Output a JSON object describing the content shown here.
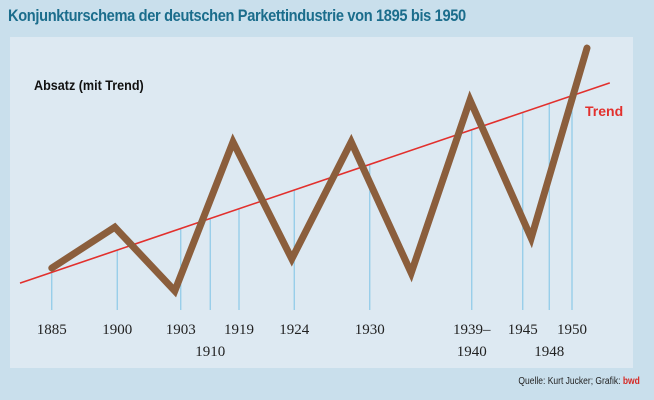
{
  "chart_data": {
    "type": "line",
    "title": "Konjunkturschema der deutschen Parkettindustrie von 1895 bis 1950",
    "ylabel": "Absatz (mit Trend)",
    "xlim": [
      0,
      100
    ],
    "ylim": [
      0,
      100
    ],
    "series": [
      {
        "name": "Absatz",
        "color": "#8b5e3c",
        "x": [
          5.3,
          15.8,
          25.8,
          35.5,
          45.3,
          55.2,
          65.2,
          75,
          85.2,
          94.5
        ],
        "values": [
          12.3,
          28,
          3.5,
          60.8,
          15.8,
          60.8,
          10.4,
          76.9,
          23.8,
          96.9
        ]
      }
    ],
    "trend": {
      "name": "Trend",
      "color": "#e2302d",
      "x": [
        0,
        98.3
      ],
      "values": [
        6.5,
        83.5
      ]
    },
    "categories": [
      "1885",
      "1900",
      "1903",
      "1910",
      "1919",
      "1924",
      "1930",
      "1939–\n1940",
      "1945",
      "1948",
      "1950"
    ],
    "category_x": [
      5.3,
      16.2,
      26.8,
      31.7,
      36.5,
      45.7,
      58.3,
      75.3,
      83.8,
      88.2,
      92
    ],
    "source": "Quelle: Kurt Jucker; Grafik:",
    "source_credit": "bwd"
  }
}
